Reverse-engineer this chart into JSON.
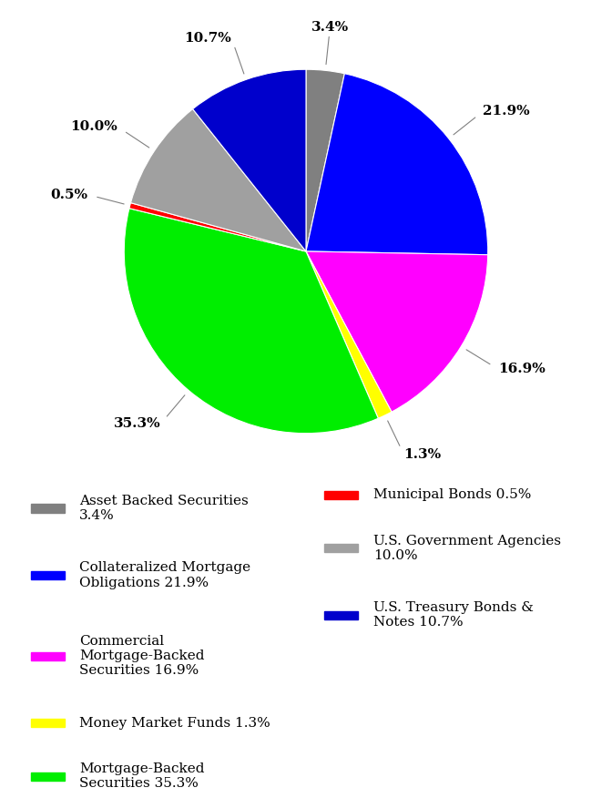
{
  "slices": [
    {
      "label": "Asset Backed Securities 3.4%",
      "value": 3.4,
      "color": "#808080"
    },
    {
      "label": "Collateralized Mortgage Obligations 21.9%",
      "value": 21.9,
      "color": "#0000FF"
    },
    {
      "label": "Commercial Mortgage-Backed Securities 16.9%",
      "value": 16.9,
      "color": "#FF00FF"
    },
    {
      "label": "Money Market Funds 1.3%",
      "value": 1.3,
      "color": "#FFFF00"
    },
    {
      "label": "Mortgage-Backed Securities 35.3%",
      "value": 35.3,
      "color": "#00EE00"
    },
    {
      "label": "Municipal Bonds 0.5%",
      "value": 0.5,
      "color": "#FF0000"
    },
    {
      "label": "U.S. Government Agencies 10.0%",
      "value": 10.0,
      "color": "#A0A0A0"
    },
    {
      "label": "U.S. Treasury Bonds & Notes 10.7%",
      "value": 10.7,
      "color": "#0000CC"
    }
  ],
  "pct_labels": [
    "3.4%",
    "21.9%",
    "16.9%",
    "1.3%",
    "35.3%",
    "0.5%",
    "10.0%",
    "10.7%"
  ],
  "legend_left": [
    {
      "label": "Asset Backed Securities\n3.4%",
      "color": "#808080"
    },
    {
      "label": "Collateralized Mortgage\nObligations 21.9%",
      "color": "#0000FF"
    },
    {
      "label": "Commercial\nMortgage-Backed\nSecurities 16.9%",
      "color": "#FF00FF"
    },
    {
      "label": "Money Market Funds 1.3%",
      "color": "#FFFF00"
    },
    {
      "label": "Mortgage-Backed\nSecurities 35.3%",
      "color": "#00EE00"
    }
  ],
  "legend_right": [
    {
      "label": "Municipal Bonds 0.5%",
      "color": "#FF0000"
    },
    {
      "label": "U.S. Government Agencies\n10.0%",
      "color": "#A0A0A0"
    },
    {
      "label": "U.S. Treasury Bonds &\nNotes 10.7%",
      "color": "#0000CC"
    }
  ],
  "background_color": "#FFFFFF",
  "label_fontsize": 11,
  "legend_fontsize": 11
}
